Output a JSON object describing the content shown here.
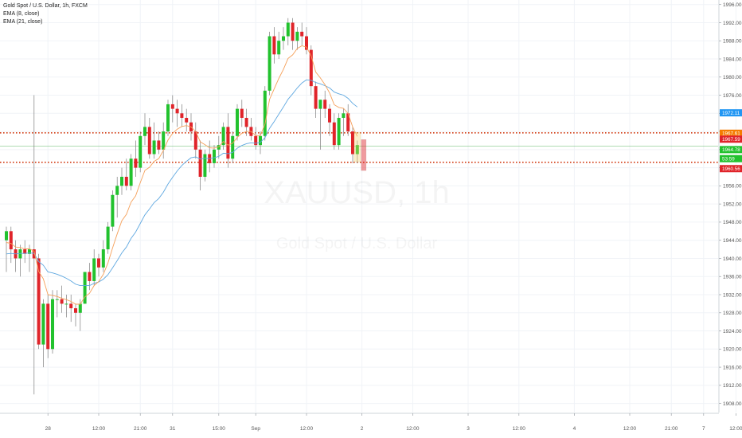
{
  "legend": {
    "symbol_line": "Gold Spot / U.S. Dollar, 1h, FXCM",
    "ema_fast": "EMA (8, close)",
    "ema_slow": "EMA (21, close)"
  },
  "watermark": {
    "ticker": "XAUUSD, 1h",
    "name": "Gold Spot / U.S. Dollar"
  },
  "colors": {
    "up": "#22c22e",
    "down": "#e0242a",
    "ema_fast": "#f5a05a",
    "ema_slow": "#5fa8e0",
    "level_line": "#d23c14",
    "current_line": "#4caf50"
  },
  "chart_data": {
    "type": "candlestick",
    "symbol": "XAUUSD",
    "timeframe": "1h",
    "ylim": [
      1906,
      1997
    ],
    "y_ticks": [
      1908,
      1912,
      1916,
      1920,
      1924,
      1928,
      1932,
      1936,
      1940,
      1944,
      1948,
      1952,
      1956,
      1960,
      1964,
      1968,
      1972,
      1976,
      1980,
      1984,
      1988,
      1992,
      1996
    ],
    "y_tick_labels": [
      "1908.00",
      "1912.00",
      "1916.00",
      "1920.00",
      "1924.00",
      "1928.00",
      "1932.00",
      "1936.00",
      "1940.00",
      "1944.00",
      "1948.00",
      "1952.00",
      "1956.00",
      "1960.00",
      "1964.00",
      "1968.00",
      "1972.00",
      "1976.00",
      "1980.00",
      "1984.00",
      "1988.00",
      "1992.00",
      "1996.00"
    ],
    "x_ticks": [
      {
        "bar": 9,
        "label": "28"
      },
      {
        "bar": 20,
        "label": "12:00"
      },
      {
        "bar": 29,
        "label": "21:00"
      },
      {
        "bar": 36,
        "label": "31"
      },
      {
        "bar": 46,
        "label": "15:00"
      },
      {
        "bar": 54,
        "label": "Sep"
      },
      {
        "bar": 65,
        "label": "12:00"
      },
      {
        "bar": 77,
        "label": "2"
      },
      {
        "bar": 88,
        "label": "12:00"
      },
      {
        "bar": 100,
        "label": "3"
      },
      {
        "bar": 111,
        "label": "12:00"
      },
      {
        "bar": 123,
        "label": "4"
      },
      {
        "bar": 135,
        "label": "12:00"
      },
      {
        "bar": 144,
        "label": "21:00"
      },
      {
        "bar": 151,
        "label": "7"
      },
      {
        "bar": 158,
        "label": "12:00"
      }
    ],
    "horizontal_levels": [
      1967.7,
      1961.2
    ],
    "current_price": 1964.8,
    "price_tags": [
      {
        "value": 1972.11,
        "label": "1972.11",
        "color": "#2196f3"
      },
      {
        "value": 1967.61,
        "label": "1967.61",
        "color": "#f57c00"
      },
      {
        "value": 1966.3,
        "label": "1967.59",
        "color": "#e0242a"
      },
      {
        "value": 1964.0,
        "label": "1964.78",
        "color": "#22c22e"
      },
      {
        "value": 1962.0,
        "label": "53:59",
        "color": "#22c22e"
      },
      {
        "value": 1959.8,
        "label": "1960.56",
        "color": "#e0242a"
      }
    ],
    "candles": [
      {
        "o": 1944,
        "h": 1947,
        "l": 1937,
        "c": 1946
      },
      {
        "o": 1946,
        "h": 1947,
        "l": 1939,
        "c": 1942
      },
      {
        "o": 1942,
        "h": 1944,
        "l": 1937,
        "c": 1940
      },
      {
        "o": 1940,
        "h": 1943,
        "l": 1936,
        "c": 1942
      },
      {
        "o": 1942,
        "h": 1944,
        "l": 1939,
        "c": 1941
      },
      {
        "o": 1941,
        "h": 1943,
        "l": 1937,
        "c": 1942
      },
      {
        "o": 1942,
        "h": 1976,
        "l": 1910,
        "c": 1940
      },
      {
        "o": 1940,
        "h": 1941,
        "l": 1920,
        "c": 1921
      },
      {
        "o": 1921,
        "h": 1931,
        "l": 1916,
        "c": 1930
      },
      {
        "o": 1930,
        "h": 1932,
        "l": 1918,
        "c": 1920
      },
      {
        "o": 1920,
        "h": 1933,
        "l": 1919,
        "c": 1931
      },
      {
        "o": 1931,
        "h": 1933,
        "l": 1927,
        "c": 1931
      },
      {
        "o": 1931,
        "h": 1934,
        "l": 1928,
        "c": 1930
      },
      {
        "o": 1930,
        "h": 1932,
        "l": 1927,
        "c": 1930
      },
      {
        "o": 1930,
        "h": 1932,
        "l": 1926,
        "c": 1929
      },
      {
        "o": 1929,
        "h": 1930,
        "l": 1925,
        "c": 1928
      },
      {
        "o": 1928,
        "h": 1931,
        "l": 1924,
        "c": 1930
      },
      {
        "o": 1930,
        "h": 1937,
        "l": 1930,
        "c": 1937
      },
      {
        "o": 1937,
        "h": 1939,
        "l": 1933,
        "c": 1935
      },
      {
        "o": 1935,
        "h": 1942,
        "l": 1934,
        "c": 1940
      },
      {
        "o": 1940,
        "h": 1941,
        "l": 1936,
        "c": 1938
      },
      {
        "o": 1938,
        "h": 1944,
        "l": 1937,
        "c": 1942
      },
      {
        "o": 1942,
        "h": 1948,
        "l": 1941,
        "c": 1947
      },
      {
        "o": 1947,
        "h": 1955,
        "l": 1946,
        "c": 1954
      },
      {
        "o": 1954,
        "h": 1958,
        "l": 1949,
        "c": 1956
      },
      {
        "o": 1956,
        "h": 1960,
        "l": 1954,
        "c": 1958
      },
      {
        "o": 1958,
        "h": 1962,
        "l": 1955,
        "c": 1956
      },
      {
        "o": 1956,
        "h": 1963,
        "l": 1955,
        "c": 1962
      },
      {
        "o": 1962,
        "h": 1966,
        "l": 1958,
        "c": 1960
      },
      {
        "o": 1960,
        "h": 1968,
        "l": 1959,
        "c": 1967
      },
      {
        "o": 1967,
        "h": 1972,
        "l": 1965,
        "c": 1969
      },
      {
        "o": 1969,
        "h": 1971,
        "l": 1962,
        "c": 1963
      },
      {
        "o": 1963,
        "h": 1970,
        "l": 1962,
        "c": 1966
      },
      {
        "o": 1966,
        "h": 1968,
        "l": 1963,
        "c": 1964
      },
      {
        "o": 1964,
        "h": 1970,
        "l": 1962,
        "c": 1968
      },
      {
        "o": 1968,
        "h": 1975,
        "l": 1967,
        "c": 1974
      },
      {
        "o": 1974,
        "h": 1976,
        "l": 1970,
        "c": 1973
      },
      {
        "o": 1973,
        "h": 1975,
        "l": 1969,
        "c": 1972
      },
      {
        "o": 1972,
        "h": 1974,
        "l": 1969,
        "c": 1971
      },
      {
        "o": 1971,
        "h": 1973,
        "l": 1968,
        "c": 1970
      },
      {
        "o": 1970,
        "h": 1972,
        "l": 1966,
        "c": 1968
      },
      {
        "o": 1968,
        "h": 1970,
        "l": 1962,
        "c": 1964
      },
      {
        "o": 1964,
        "h": 1966,
        "l": 1955,
        "c": 1958
      },
      {
        "o": 1958,
        "h": 1964,
        "l": 1957,
        "c": 1963
      },
      {
        "o": 1963,
        "h": 1966,
        "l": 1959,
        "c": 1961
      },
      {
        "o": 1961,
        "h": 1965,
        "l": 1960,
        "c": 1964
      },
      {
        "o": 1964,
        "h": 1967,
        "l": 1962,
        "c": 1965
      },
      {
        "o": 1965,
        "h": 1970,
        "l": 1964,
        "c": 1969
      },
      {
        "o": 1969,
        "h": 1972,
        "l": 1960,
        "c": 1962
      },
      {
        "o": 1962,
        "h": 1968,
        "l": 1961,
        "c": 1967
      },
      {
        "o": 1967,
        "h": 1974,
        "l": 1966,
        "c": 1973
      },
      {
        "o": 1973,
        "h": 1975,
        "l": 1969,
        "c": 1971
      },
      {
        "o": 1971,
        "h": 1973,
        "l": 1967,
        "c": 1969
      },
      {
        "o": 1969,
        "h": 1971,
        "l": 1966,
        "c": 1967
      },
      {
        "o": 1967,
        "h": 1969,
        "l": 1964,
        "c": 1965
      },
      {
        "o": 1965,
        "h": 1968,
        "l": 1963,
        "c": 1967
      },
      {
        "o": 1967,
        "h": 1978,
        "l": 1966,
        "c": 1977
      },
      {
        "o": 1977,
        "h": 1990,
        "l": 1976,
        "c": 1989
      },
      {
        "o": 1989,
        "h": 1991,
        "l": 1983,
        "c": 1985
      },
      {
        "o": 1985,
        "h": 1990,
        "l": 1984,
        "c": 1988
      },
      {
        "o": 1988,
        "h": 1991,
        "l": 1986,
        "c": 1989
      },
      {
        "o": 1989,
        "h": 1993,
        "l": 1987,
        "c": 1992
      },
      {
        "o": 1992,
        "h": 1993,
        "l": 1986,
        "c": 1988
      },
      {
        "o": 1988,
        "h": 1991,
        "l": 1986,
        "c": 1990
      },
      {
        "o": 1990,
        "h": 1992,
        "l": 1987,
        "c": 1989
      },
      {
        "o": 1989,
        "h": 1991,
        "l": 1985,
        "c": 1986
      },
      {
        "o": 1986,
        "h": 1987,
        "l": 1976,
        "c": 1978
      },
      {
        "o": 1978,
        "h": 1979,
        "l": 1971,
        "c": 1973
      },
      {
        "o": 1973,
        "h": 1975,
        "l": 1964,
        "c": 1975
      },
      {
        "o": 1975,
        "h": 1977,
        "l": 1971,
        "c": 1973
      },
      {
        "o": 1973,
        "h": 1974,
        "l": 1967,
        "c": 1970
      },
      {
        "o": 1970,
        "h": 1972,
        "l": 1964,
        "c": 1965
      },
      {
        "o": 1965,
        "h": 1972,
        "l": 1964,
        "c": 1971
      },
      {
        "o": 1971,
        "h": 1973,
        "l": 1967,
        "c": 1972
      },
      {
        "o": 1972,
        "h": 1974,
        "l": 1967,
        "c": 1968
      },
      {
        "o": 1968,
        "h": 1969,
        "l": 1961,
        "c": 1963
      },
      {
        "o": 1963,
        "h": 1966,
        "l": 1961,
        "c": 1965
      }
    ],
    "ema_fast": [
      1943.5,
      1943.3,
      1942.5,
      1942.4,
      1942.1,
      1942.1,
      1941.6,
      1937.1,
      1935.5,
      1932.0,
      1931.8,
      1931.6,
      1931.2,
      1930.9,
      1930.5,
      1929.9,
      1929.9,
      1931.5,
      1932.3,
      1934.0,
      1934.9,
      1936.5,
      1939.0,
      1942.3,
      1945.4,
      1948.3,
      1949.7,
      1952.4,
      1953.8,
      1956.7,
      1959.4,
      1960.1,
      1961.4,
      1962.0,
      1963.8,
      1966.1,
      1967.6,
      1968.5,
      1969.1,
      1969.3,
      1969.0,
      1968.0,
      1965.7,
      1965.1,
      1964.4,
      1964.3,
      1964.6,
      1965.8,
      1965.0,
      1965.4,
      1966.7,
      1967.6,
      1968.0,
      1968.0,
      1967.1,
      1967.1,
      1969.6,
      1975.1,
      1977.4,
      1979.7,
      1981.7,
      1984.1,
      1984.9,
      1986.3,
      1986.9,
      1986.6,
      1984.7,
      1981.1,
      1979.8,
      1978.3,
      1976.5,
      1973.9,
      1973.3,
      1973.1,
      1972.0,
      1969.0,
      1966.9
    ],
    "ema_slow": [
      1941.0,
      1941.1,
      1941.0,
      1941.1,
      1941.1,
      1941.2,
      1941.1,
      1939.3,
      1938.5,
      1937.0,
      1936.8,
      1936.5,
      1936.1,
      1935.6,
      1935.0,
      1934.3,
      1934.0,
      1934.0,
      1934.0,
      1934.5,
      1934.8,
      1935.4,
      1936.4,
      1937.9,
      1939.5,
      1941.2,
      1942.5,
      1944.4,
      1945.8,
      1947.7,
      1949.6,
      1950.9,
      1952.3,
      1953.2,
      1954.6,
      1956.4,
      1957.9,
      1959.3,
      1960.5,
      1961.4,
      1962.2,
      1962.4,
      1961.9,
      1962.1,
      1962.0,
      1962.2,
      1962.5,
      1963.2,
      1963.1,
      1963.4,
      1964.3,
      1964.9,
      1965.3,
      1965.5,
      1965.4,
      1965.6,
      1966.6,
      1968.7,
      1970.2,
      1971.8,
      1973.4,
      1975.1,
      1976.3,
      1977.6,
      1978.7,
      1979.4,
      1979.3,
      1978.8,
      1978.5,
      1978.1,
      1977.6,
      1976.7,
      1976.3,
      1976.0,
      1975.3,
      1974.2,
      1973.4
    ]
  }
}
